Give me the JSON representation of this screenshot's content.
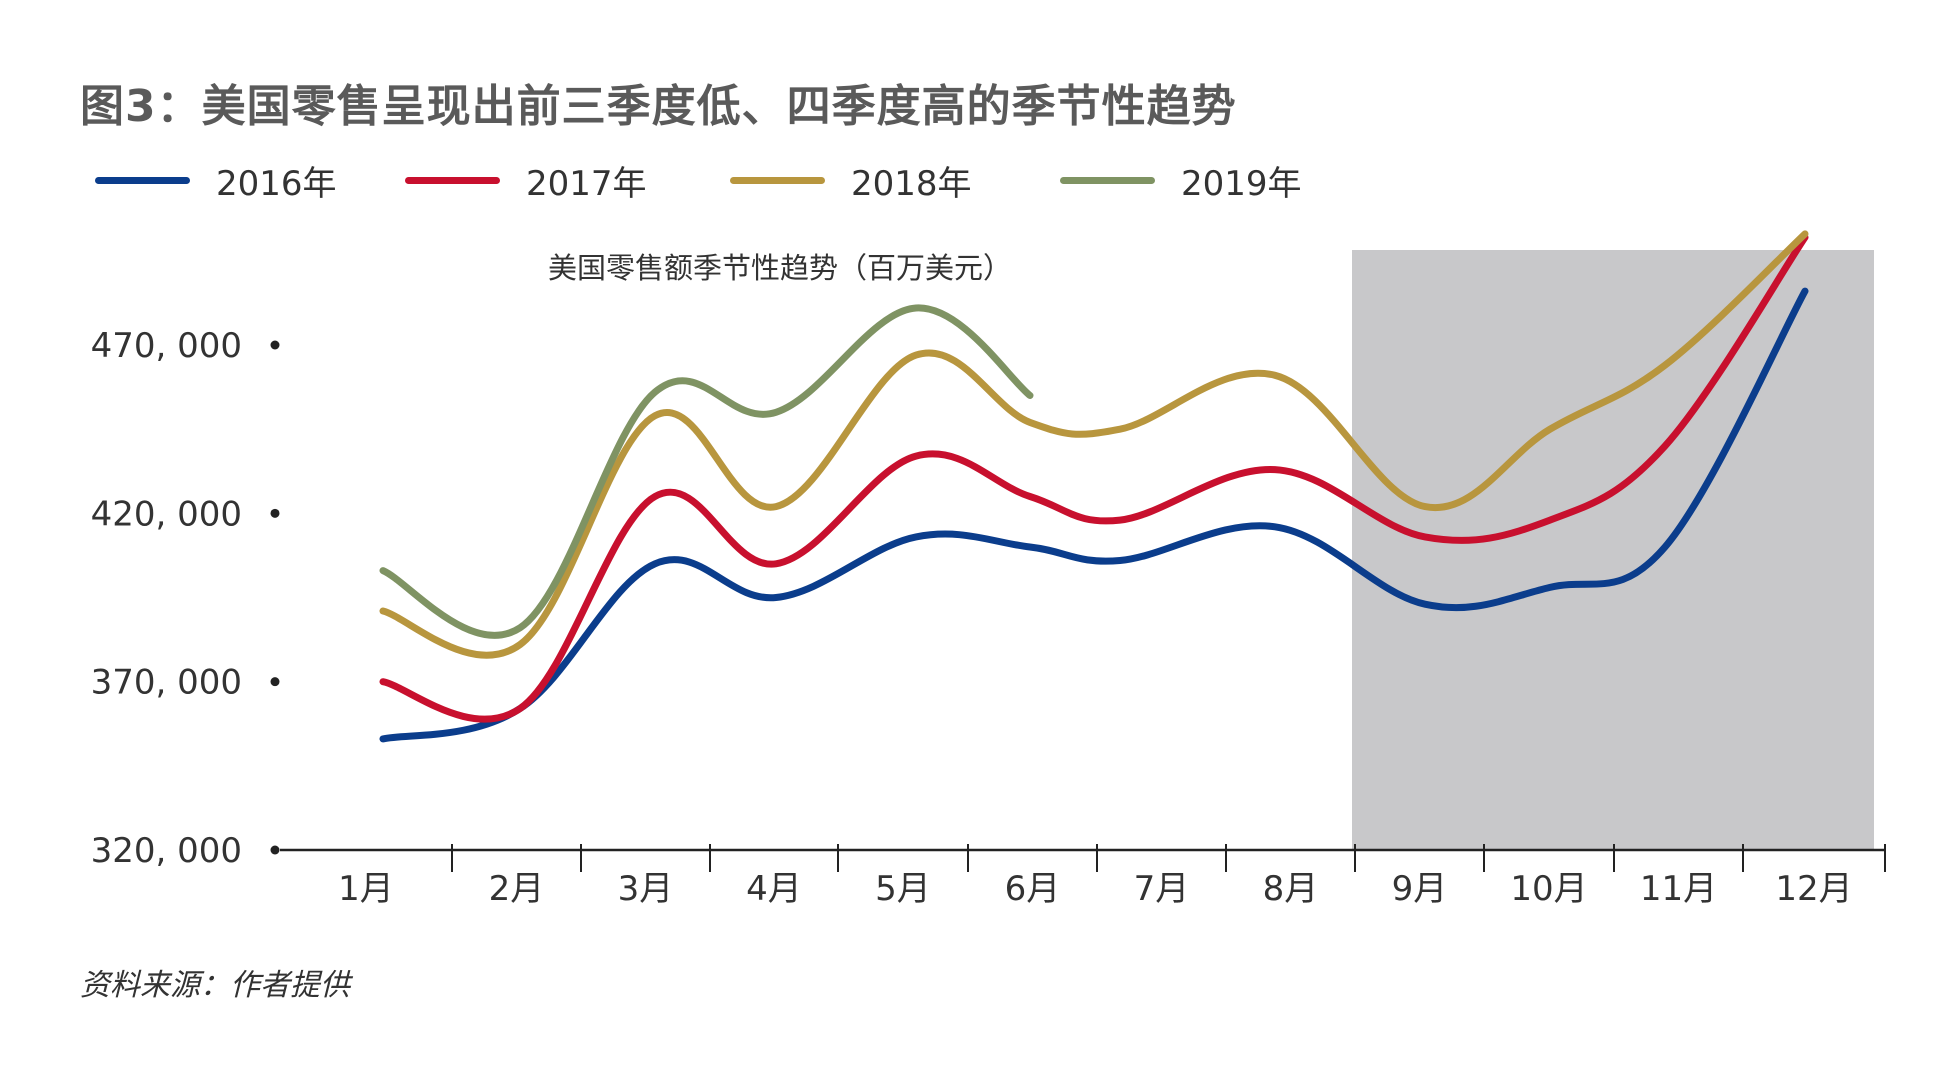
{
  "title": "图3：美国零售呈现出前三季度低、四季度高的季节性趋势",
  "source": "资料来源：作者提供",
  "chart_data": {
    "type": "line",
    "annotation": "美国零售额季节性趋势（百万美元）",
    "categories": [
      "1月",
      "2月",
      "3月",
      "4月",
      "5月",
      "6月",
      "7月",
      "8月",
      "9月",
      "10月",
      "11月",
      "12月"
    ],
    "ylim": [
      320000,
      470000
    ],
    "yticks": [
      320000,
      370000,
      420000,
      470000
    ],
    "ytick_labels": [
      "320, 000",
      "370, 000",
      "420, 000",
      "470, 000"
    ],
    "highlight_region": {
      "from": "9月",
      "to": "12月",
      "color": "#c8c8ca"
    },
    "grid": false,
    "legend_position": "top-left",
    "series": [
      {
        "name": "2016年",
        "color": "#0b3d8c",
        "values": [
          353000,
          362000,
          405000,
          395000,
          413000,
          410000,
          406000,
          416000,
          393000,
          398000,
          410000,
          486000
        ]
      },
      {
        "name": "2017年",
        "color": "#c8102e",
        "values": [
          370000,
          362000,
          425000,
          405000,
          437000,
          425000,
          418000,
          433000,
          413000,
          418000,
          440000,
          502000
        ]
      },
      {
        "name": "2018年",
        "color": "#b8963e",
        "values": [
          391000,
          381000,
          449000,
          422000,
          467000,
          447000,
          445000,
          461000,
          422000,
          445000,
          464000,
          503000
        ]
      },
      {
        "name": "2019年",
        "color": "#7f9363",
        "values": [
          403000,
          386000,
          456000,
          450000,
          481000,
          455000,
          null,
          null,
          null,
          null,
          null,
          null
        ]
      }
    ]
  }
}
